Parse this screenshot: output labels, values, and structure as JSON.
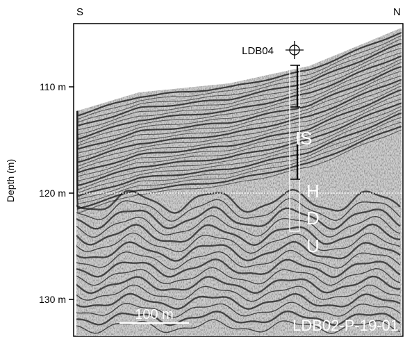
{
  "compass": {
    "left": "S",
    "right": "N"
  },
  "axis": {
    "ylabel": "Depth (m)",
    "ticks": [
      {
        "label": "110 m",
        "depth": 110
      },
      {
        "label": "120 m",
        "depth": 120
      },
      {
        "label": "130 m",
        "depth": 130
      }
    ]
  },
  "site": {
    "label": "LDB04",
    "icon": "crosshair-icon"
  },
  "units": [
    {
      "name": "IS",
      "letters": [
        "IS"
      ]
    },
    {
      "name": "HDU",
      "letters": [
        "H",
        "D",
        "U"
      ]
    }
  ],
  "scale_bar": {
    "label": "100 m"
  },
  "profile_id": "LDB02-P-19-01",
  "colors": {
    "frame": "#000000",
    "reflector": "#1a1a1a",
    "label_text": "#ffffff",
    "boundary": "#ffffff"
  }
}
